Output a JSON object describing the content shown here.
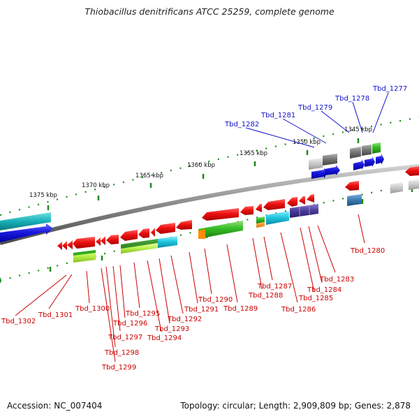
{
  "title": "Thiobacillus denitrificans ATCC 25259, complete genome",
  "footer": {
    "accession": "Accession: NC_007404",
    "stats": "Topology: circular; Length: 2,909,809 bp; Genes: 2,878"
  },
  "ruler": [
    "1375 kbp",
    "1370 kbp",
    "1365 kbp",
    "1360 kbp",
    "1355 kbp",
    "1350 kbp",
    "1345 kbp"
  ],
  "labels_upper": [
    "Tbd_1277",
    "Tbd_1278",
    "Tbd_1279",
    "Tbd_1281",
    "Tbd_1282"
  ],
  "labels_lower": [
    "Tbd_1280",
    "Tbd_1283",
    "Tbd_1284",
    "Tbd_1285",
    "Tbd_1286",
    "Tbd_1287",
    "Tbd_1288",
    "Tbd_1289",
    "Tbd_1290",
    "Tbd_1291",
    "Tbd_1292",
    "Tbd_1293",
    "Tbd_1294",
    "Tbd_1295",
    "Tbd_1296",
    "Tbd_1297",
    "Tbd_1298",
    "Tbd_1299",
    "Tbd_1300",
    "Tbd_1301",
    "Tbd_1302"
  ],
  "colors": {
    "backbone": "#8a8a8a",
    "ruler_dots": "#1d8a1d",
    "gene_red": "#ee1111",
    "gene_blue": "#1a1ae0",
    "gene_green": "#33bb22",
    "gene_cyan": "#22c8e0",
    "gene_gray": "#777777",
    "gene_lightgray": "#c8c8c8",
    "gene_purple": "#4a3a9a",
    "gene_steelblue": "#3a7ab0",
    "gene_lime": "#b8f04a",
    "gene_orange": "#ff8c00"
  }
}
